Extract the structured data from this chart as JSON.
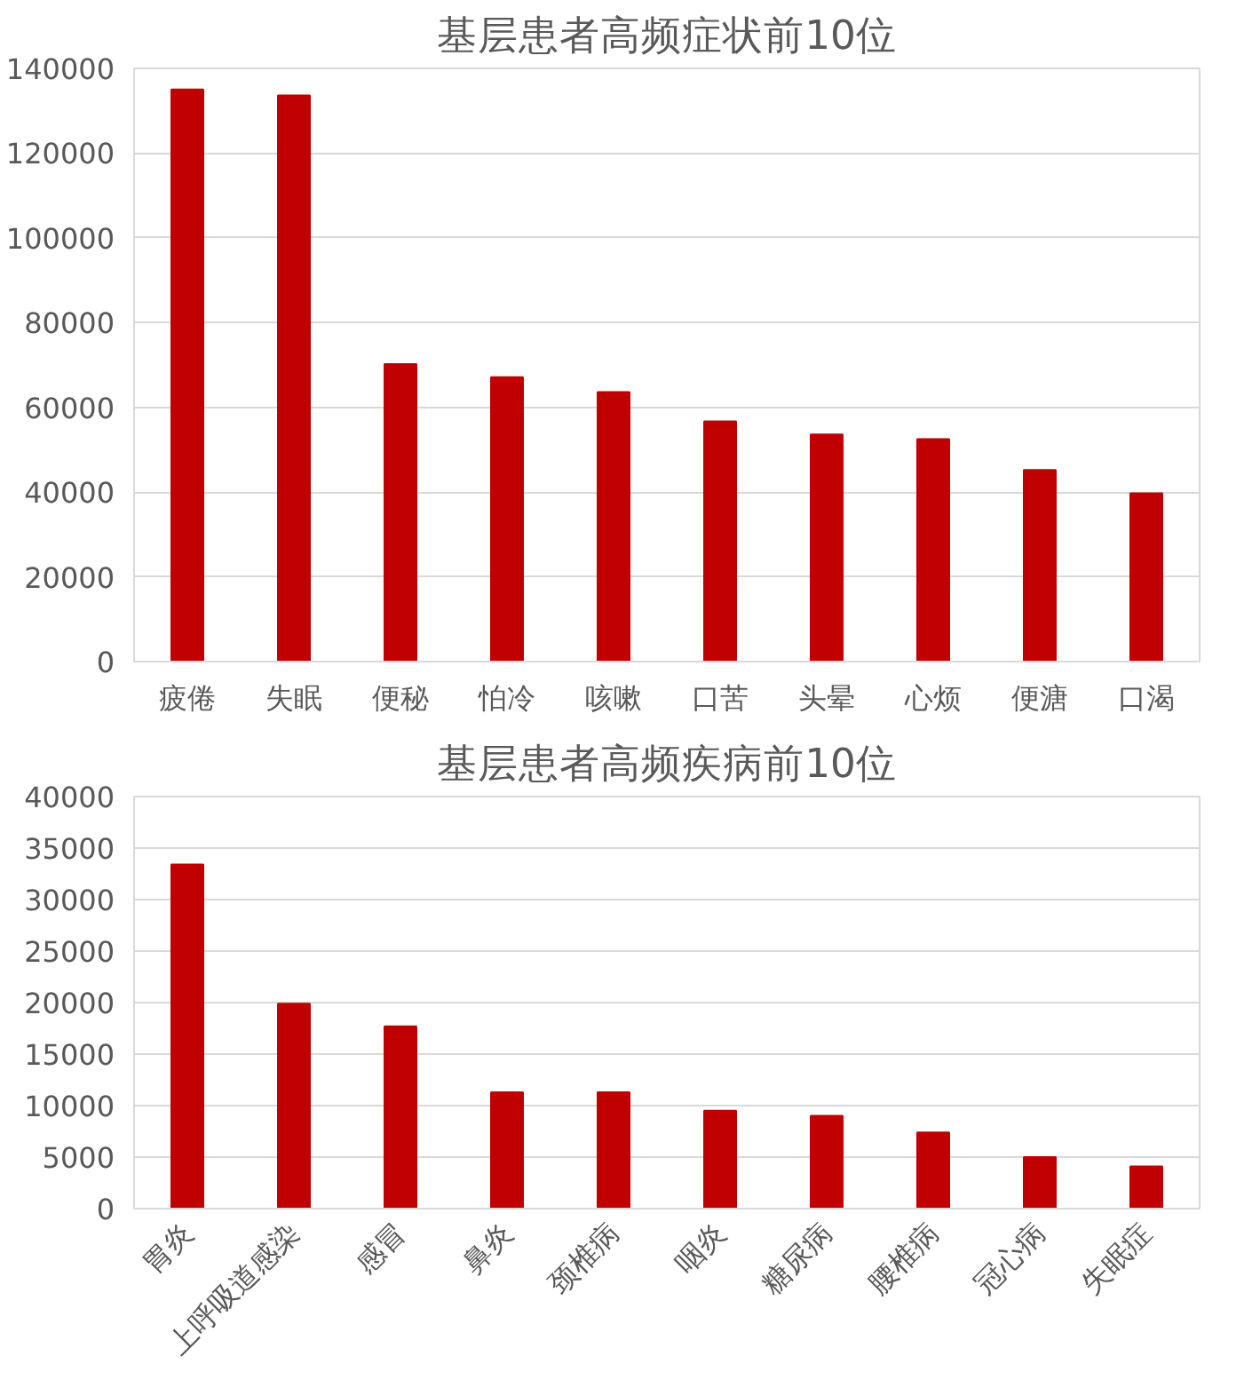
{
  "chart_data": [
    {
      "type": "bar",
      "title": "基层患者高频症状前10位",
      "categories": [
        "疲倦",
        "失眠",
        "便秘",
        "怕冷",
        "咳嗽",
        "口苦",
        "头晕",
        "心烦",
        "便溏",
        "口渴"
      ],
      "values": [
        135000,
        133600,
        70200,
        67100,
        63600,
        56700,
        53600,
        52500,
        45200,
        39700
      ],
      "color": "#c00000",
      "ylim": [
        0,
        140000
      ],
      "yticks": [
        0,
        20000,
        40000,
        60000,
        80000,
        100000,
        120000,
        140000
      ],
      "grid": "y"
    },
    {
      "type": "bar",
      "title": "基层患者高频疾病前10位",
      "categories": [
        "胃炎",
        "上呼吸道感染",
        "感冒",
        "鼻炎",
        "颈椎病",
        "咽炎",
        "糖尿病",
        "腰椎病",
        "冠心病",
        "失眠症"
      ],
      "values": [
        33400,
        19900,
        17700,
        11300,
        11300,
        9500,
        9000,
        7400,
        5000,
        4100
      ],
      "color": "#c00000",
      "ylim": [
        0,
        40000
      ],
      "yticks": [
        0,
        5000,
        10000,
        15000,
        20000,
        25000,
        30000,
        35000,
        40000
      ],
      "grid": "y"
    }
  ]
}
